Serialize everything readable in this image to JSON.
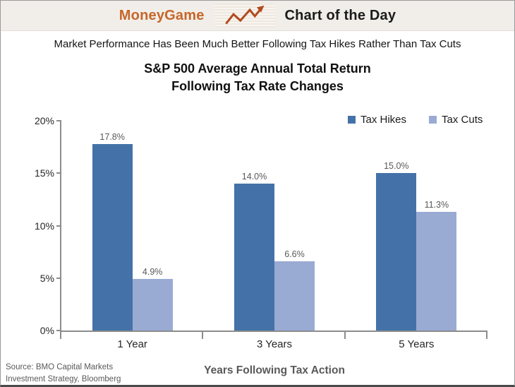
{
  "header": {
    "brand": "MoneyGame",
    "title": "Chart of the Day",
    "brand_color": "#c7662a",
    "icon": "zigzag-trend-arrow-icon"
  },
  "subtitle": "Market Performance Has Been Much Better Following Tax Hikes Rather Than Tax Cuts",
  "chart_data": {
    "type": "bar",
    "title": "S&P 500 Average Annual Total Return Following Tax Rate Changes",
    "title_lines": [
      "S&P 500 Average Annual Total Return",
      "Following Tax Rate Changes"
    ],
    "categories": [
      "1 Year",
      "3 Years",
      "5 Years"
    ],
    "series": [
      {
        "name": "Tax Hikes",
        "values": [
          17.8,
          14.0,
          15.0
        ],
        "color": "#4472a8"
      },
      {
        "name": "Tax Cuts",
        "values": [
          4.9,
          6.6,
          11.3
        ],
        "color": "#99aad3"
      }
    ],
    "xlabel": "Years Following Tax Action",
    "ylabel": "",
    "ylim": [
      0,
      20
    ],
    "y_ticks": [
      0,
      5,
      10,
      15,
      20
    ],
    "y_tick_suffix": "%",
    "grid": false,
    "legend_position": "top-right",
    "axis_color": "#8c8c8c"
  },
  "source": {
    "line1": "Source: BMO Capital Markets",
    "line2": "Investment Strategy, Bloomberg"
  }
}
